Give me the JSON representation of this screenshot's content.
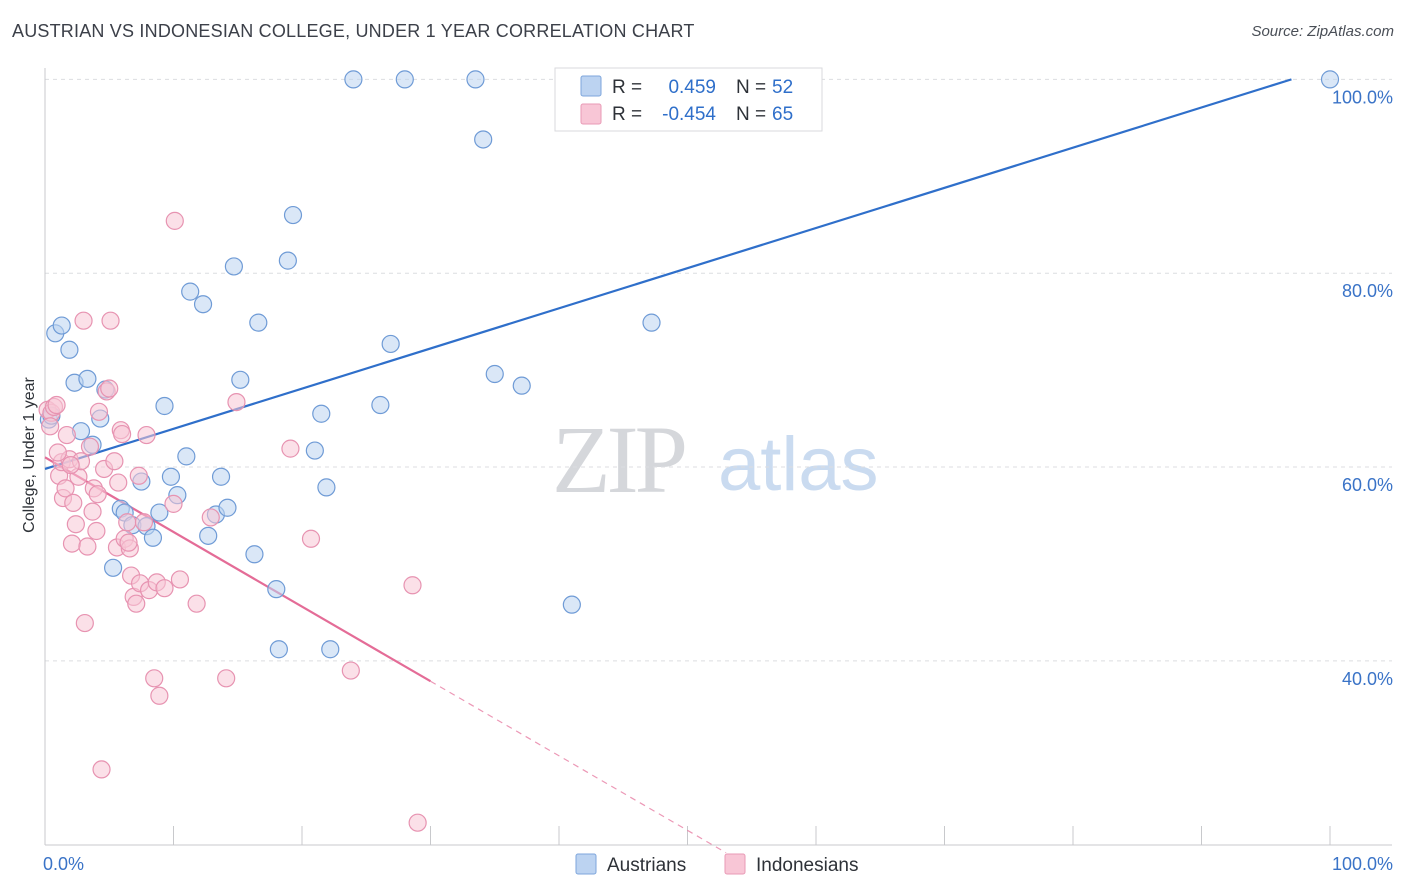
{
  "title": "AUSTRIAN VS INDONESIAN COLLEGE, UNDER 1 YEAR CORRELATION CHART",
  "source": "Source: ZipAtlas.com",
  "colors": {
    "blue": "#2f6fca",
    "pink": "#e46c97",
    "blue_fill": "#bcd3f1",
    "pink_fill": "#f8c6d6",
    "grid": "#dcdde0"
  },
  "chart_data": {
    "type": "scatter",
    "title": "AUSTRIAN VS INDONESIAN COLLEGE, UNDER 1 YEAR CORRELATION CHART",
    "xlabel": "",
    "ylabel": "College, Under 1 year",
    "xlim": [
      0,
      100
    ],
    "ylim": [
      21,
      102
    ],
    "x_tick_labels": [
      "0.0%",
      "100.0%"
    ],
    "y_ticks": [
      40,
      60,
      80,
      100
    ],
    "y_tick_labels": [
      "40.0%",
      "60.0%",
      "80.0%",
      "100.0%"
    ],
    "legend": {
      "placement": "top-center",
      "rows": [
        {
          "r_label": "R =",
          "r_value": "0.459",
          "n_label": "N =",
          "n_value": "52"
        },
        {
          "r_label": "R =",
          "r_value": "-0.454",
          "n_label": "N =",
          "n_value": "65"
        }
      ]
    },
    "series": [
      {
        "name": "Austrians",
        "color": "#2f6fca",
        "points": [
          [
            0.3,
            64.9
          ],
          [
            0.5,
            65.3
          ],
          [
            0.8,
            73.8
          ],
          [
            1.3,
            74.6
          ],
          [
            1.9,
            72.1
          ],
          [
            2.3,
            68.7
          ],
          [
            2.8,
            63.7
          ],
          [
            3.3,
            69.1
          ],
          [
            3.7,
            62.3
          ],
          [
            4.3,
            65.0
          ],
          [
            4.7,
            68.0
          ],
          [
            5.3,
            49.6
          ],
          [
            5.9,
            55.7
          ],
          [
            6.2,
            55.3
          ],
          [
            6.8,
            54.0
          ],
          [
            7.5,
            58.5
          ],
          [
            7.9,
            53.9
          ],
          [
            8.4,
            52.7
          ],
          [
            8.9,
            55.3
          ],
          [
            9.3,
            66.3
          ],
          [
            9.8,
            59.0
          ],
          [
            10.3,
            57.1
          ],
          [
            11.0,
            61.1
          ],
          [
            11.3,
            78.1
          ],
          [
            12.3,
            76.8
          ],
          [
            12.7,
            52.9
          ],
          [
            13.3,
            55.1
          ],
          [
            13.7,
            59.0
          ],
          [
            14.2,
            55.8
          ],
          [
            14.7,
            80.7
          ],
          [
            15.2,
            69.0
          ],
          [
            16.3,
            51.0
          ],
          [
            16.6,
            74.9
          ],
          [
            18.0,
            47.4
          ],
          [
            18.2,
            41.2
          ],
          [
            18.9,
            81.3
          ],
          [
            19.3,
            86.0
          ],
          [
            21.0,
            61.7
          ],
          [
            21.5,
            65.5
          ],
          [
            21.9,
            57.9
          ],
          [
            22.2,
            41.2
          ],
          [
            24.0,
            100.0
          ],
          [
            26.1,
            66.4
          ],
          [
            26.9,
            72.7
          ],
          [
            28.0,
            100.0
          ],
          [
            33.5,
            100.0
          ],
          [
            34.1,
            93.8
          ],
          [
            35.0,
            69.6
          ],
          [
            37.1,
            68.4
          ],
          [
            41.0,
            45.8
          ],
          [
            47.2,
            74.9
          ],
          [
            100.0,
            100.0
          ]
        ]
      },
      {
        "name": "Indonesians",
        "color": "#e46c97",
        "points": [
          [
            0.2,
            65.9
          ],
          [
            0.5,
            65.6
          ],
          [
            0.7,
            66.2
          ],
          [
            0.9,
            66.4
          ],
          [
            1.1,
            59.1
          ],
          [
            1.3,
            60.5
          ],
          [
            1.4,
            56.8
          ],
          [
            1.6,
            57.8
          ],
          [
            1.7,
            63.3
          ],
          [
            1.9,
            60.8
          ],
          [
            2.1,
            52.1
          ],
          [
            2.2,
            56.3
          ],
          [
            2.4,
            54.1
          ],
          [
            2.6,
            59.0
          ],
          [
            2.8,
            60.6
          ],
          [
            3.0,
            75.1
          ],
          [
            3.1,
            43.9
          ],
          [
            3.3,
            51.8
          ],
          [
            3.5,
            62.1
          ],
          [
            3.7,
            55.4
          ],
          [
            3.8,
            57.8
          ],
          [
            4.0,
            53.4
          ],
          [
            4.2,
            65.7
          ],
          [
            4.4,
            28.8
          ],
          [
            4.6,
            59.8
          ],
          [
            4.8,
            67.8
          ],
          [
            5.0,
            68.1
          ],
          [
            5.1,
            75.1
          ],
          [
            5.4,
            60.6
          ],
          [
            5.6,
            51.7
          ],
          [
            5.7,
            58.4
          ],
          [
            5.9,
            63.8
          ],
          [
            6.0,
            63.4
          ],
          [
            6.2,
            52.6
          ],
          [
            6.4,
            54.3
          ],
          [
            6.6,
            51.6
          ],
          [
            6.7,
            48.8
          ],
          [
            6.9,
            46.6
          ],
          [
            7.1,
            45.9
          ],
          [
            7.3,
            59.1
          ],
          [
            7.4,
            48.0
          ],
          [
            7.7,
            54.3
          ],
          [
            7.9,
            63.3
          ],
          [
            8.1,
            47.3
          ],
          [
            8.5,
            38.2
          ],
          [
            8.7,
            48.1
          ],
          [
            8.9,
            36.4
          ],
          [
            10.0,
            56.2
          ],
          [
            10.1,
            85.4
          ],
          [
            10.5,
            48.4
          ],
          [
            11.8,
            45.9
          ],
          [
            12.9,
            54.8
          ],
          [
            14.1,
            38.2
          ],
          [
            14.9,
            66.7
          ],
          [
            19.1,
            61.9
          ],
          [
            20.7,
            52.6
          ],
          [
            23.8,
            39.0
          ],
          [
            28.6,
            47.8
          ],
          [
            29.0,
            23.3
          ],
          [
            0.4,
            64.2
          ],
          [
            1.0,
            61.5
          ],
          [
            2.0,
            60.2
          ],
          [
            4.1,
            57.2
          ],
          [
            6.5,
            52.2
          ],
          [
            9.3,
            47.5
          ]
        ]
      }
    ],
    "trend_lines": [
      {
        "series": "Austrians",
        "x": [
          0,
          97
        ],
        "y": [
          59.8,
          100.0
        ],
        "style": "solid"
      },
      {
        "series": "Indonesians",
        "x": [
          0,
          30
        ],
        "y": [
          61.0,
          37.9
        ],
        "style": "solid"
      },
      {
        "series": "Indonesians",
        "x": [
          30,
          53
        ],
        "y": [
          37.9,
          20.2
        ],
        "style": "dashed"
      }
    ]
  },
  "legend_bottom": [
    {
      "label": "Austrians",
      "color": "#2f6fca"
    },
    {
      "label": "Indonesians",
      "color": "#e46c97"
    }
  ],
  "watermark": {
    "brand": "ZIP",
    "suffix": "atlas"
  }
}
